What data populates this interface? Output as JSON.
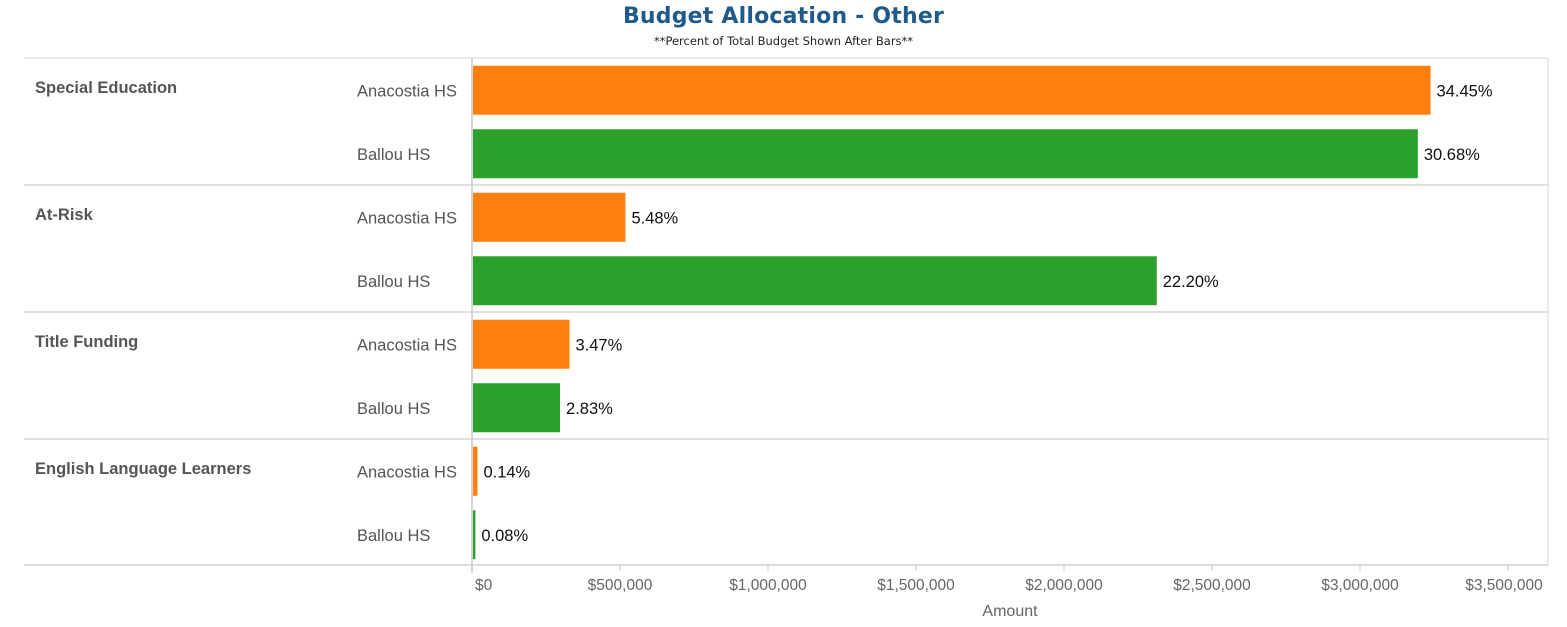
{
  "chart_data": {
    "type": "bar",
    "orientation": "horizontal",
    "title": "Budget Allocation - Other",
    "subtitle": "**Percent of Total Budget Shown After Bars**",
    "xlabel": "Amount",
    "xlim": [
      0,
      3600000
    ],
    "x_ticks": [
      0,
      500000,
      1000000,
      1500000,
      2000000,
      2500000,
      3000000,
      3500000
    ],
    "x_tick_labels": [
      "$0",
      "$500,000",
      "$1,000,000",
      "$1,500,000",
      "$2,000,000",
      "$2,500,000",
      "$3,000,000",
      "$3,500,000"
    ],
    "grid": false,
    "series_colors": {
      "Anacostia HS": "#ff7f0e",
      "Ballou HS": "#2ca02c"
    },
    "groups": [
      {
        "name": "Special Education",
        "bars": [
          {
            "school": "Anacostia HS",
            "value": 3235000,
            "label": "34.45%"
          },
          {
            "school": "Ballou HS",
            "value": 3192000,
            "label": "30.68%"
          }
        ]
      },
      {
        "name": "At-Risk",
        "bars": [
          {
            "school": "Anacostia HS",
            "value": 515000,
            "label": "5.48%"
          },
          {
            "school": "Ballou HS",
            "value": 2310000,
            "label": "22.20%"
          }
        ]
      },
      {
        "name": "Title Funding",
        "bars": [
          {
            "school": "Anacostia HS",
            "value": 326000,
            "label": "3.47%"
          },
          {
            "school": "Ballou HS",
            "value": 294000,
            "label": "2.83%"
          }
        ]
      },
      {
        "name": "English Language Learners",
        "bars": [
          {
            "school": "Anacostia HS",
            "value": 15000,
            "label": "0.14%"
          },
          {
            "school": "Ballou HS",
            "value": 8000,
            "label": "0.08%"
          }
        ]
      }
    ]
  }
}
